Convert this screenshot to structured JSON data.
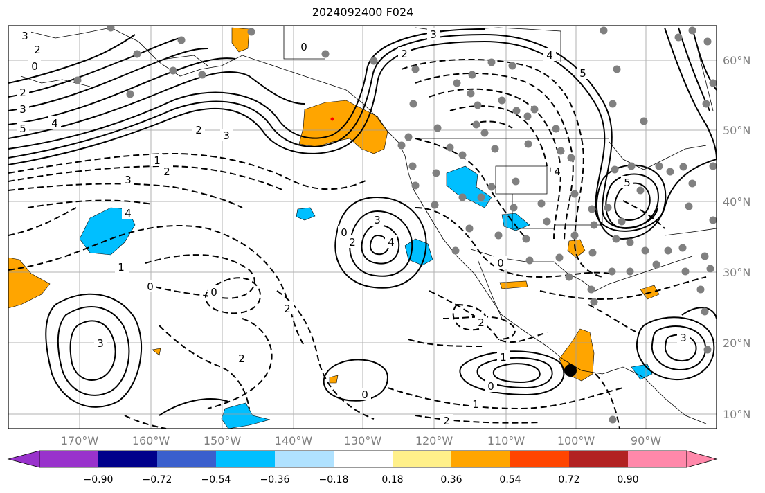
{
  "title": "2024092400 F024",
  "lon_ticks": [
    "170°W",
    "160°W",
    "150°W",
    "140°W",
    "130°W",
    "120°W",
    "110°W",
    "100°W",
    "90°W"
  ],
  "lat_ticks": [
    "60°N",
    "50°N",
    "40°N",
    "30°N",
    "20°N",
    "10°N"
  ],
  "colorbar": {
    "colors": [
      "#9932cc",
      "#00008b",
      "#3a5fcd",
      "#00bfff",
      "#b0e2ff",
      "#ffffff",
      "#fff08a",
      "#ffa500",
      "#ff4500",
      "#b22222",
      "#ff88aa"
    ],
    "labels": [
      "−0.90",
      "−0.72",
      "−0.54",
      "−0.36",
      "−0.18",
      "0.18",
      "0.36",
      "0.54",
      "0.72",
      "0.90"
    ]
  },
  "contour_labels": [
    "3",
    "2",
    "0",
    "2",
    "3",
    "4",
    "5",
    "0",
    "3",
    "2",
    "4",
    "5",
    "2",
    "3",
    "1",
    "2",
    "3",
    "4",
    "0",
    "1",
    "0",
    "3",
    "2",
    "0",
    "2",
    "3",
    "4",
    "1",
    "0",
    "2",
    "1",
    "0",
    "2",
    "3",
    "2",
    "1",
    "0",
    "5",
    "4"
  ],
  "colors": {
    "contour": "#000000",
    "grid": "#a0a0a0",
    "station_dot": "#808080",
    "marker": "#000000"
  }
}
